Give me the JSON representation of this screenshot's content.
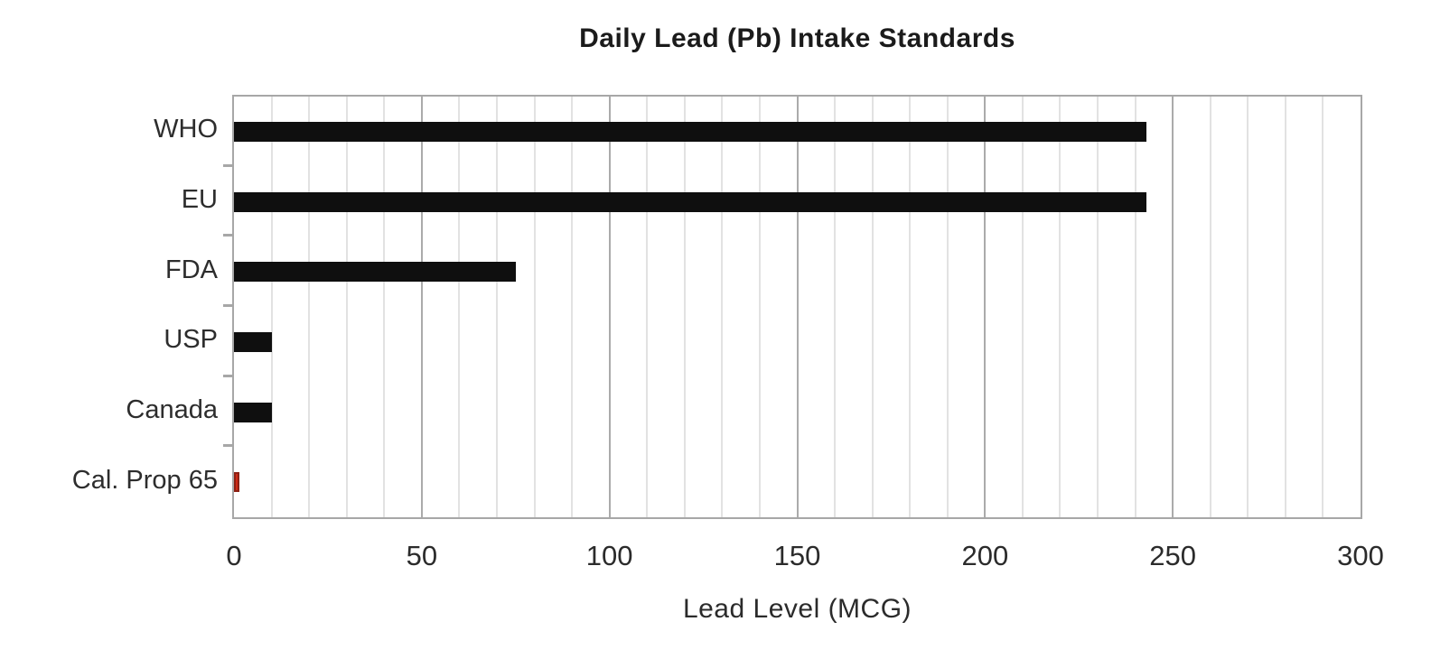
{
  "chart_data": {
    "type": "bar",
    "orientation": "horizontal",
    "title": "Daily Lead (Pb) Intake Standards",
    "xlabel": "Lead Level (MCG)",
    "ylabel": "",
    "categories": [
      "WHO",
      "EU",
      "FDA",
      "USP",
      "Canada",
      "Cal. Prop 65"
    ],
    "values": [
      243,
      243,
      75,
      10,
      10,
      0.5
    ],
    "bar_colors": [
      "#0f0f0f",
      "#0f0f0f",
      "#0f0f0f",
      "#0f0f0f",
      "#0f0f0f",
      "#ce2a17"
    ],
    "bar_border_colors": [
      "none",
      "none",
      "none",
      "none",
      "none",
      "#8c2013"
    ],
    "xlim": [
      0,
      300
    ],
    "x_major_ticks": [
      0,
      50,
      100,
      150,
      200,
      250,
      300
    ],
    "x_minor_step": 10,
    "grid": "vertical, minor every 10, major every 50",
    "legend": "none",
    "colors": {
      "bar": "#0f0f0f",
      "highlight_fill": "#ce2a17",
      "highlight_border": "#8c2013",
      "axis": "#a7a7a7",
      "grid_minor": "#e2e2e2",
      "grid_major": "#ababab",
      "title_text": "#1b1b1b",
      "label_text": "#2b2b2b",
      "background": "#ffffff"
    }
  }
}
